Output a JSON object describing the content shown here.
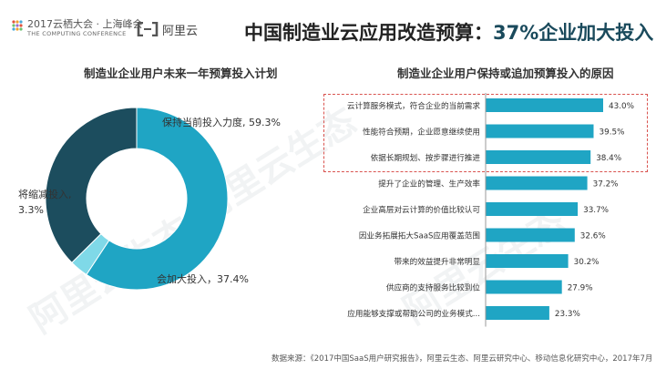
{
  "header": {
    "logo_title": "2017云栖大会 · 上海峰会",
    "logo_subtitle": "THE COMPUTING CONFERENCE",
    "brand": "阿里云",
    "title_prefix": "中国制造业云应用改造预算：",
    "title_highlight": "37%企业加大投入"
  },
  "watermark": "阿里云生态",
  "colors": {
    "pie_keep": "#1fa5c4",
    "pie_reduce": "#7fd9e8",
    "pie_increase": "#1c4d5e",
    "bar": "#1fa5c4",
    "highlight_border": "#d9534f"
  },
  "chart_data": [
    {
      "type": "pie",
      "style": "donut",
      "title": "制造业企业用户未来一年预算投入计划",
      "slices": [
        {
          "label": "保持当前投入力度",
          "value": 59.3,
          "display": "保持当前投入力度, 59.3%"
        },
        {
          "label": "将缩减投入",
          "value": 3.3,
          "display_line1": "将缩减投入,",
          "display_line2": "3.3%"
        },
        {
          "label": "会加大投入",
          "value": 37.4,
          "display": "会加大投入，37.4%"
        }
      ]
    },
    {
      "type": "bar",
      "orientation": "horizontal",
      "title": "制造业企业用户保持或追加预算投入的原因",
      "categories": [
        "云计算服务模式，符合企业的当前需求",
        "性能符合预期，企业愿意继续使用",
        "依据长期规划、按步骤进行推进",
        "提升了企业的管理、生产效率",
        "企业高层对云计算的价值比较认可",
        "因业务拓展拓大SaaS应用覆盖范围",
        "带来的效益提升非常明显",
        "供应商的支持服务比较到位",
        "应用能够支撑或帮助公司的业务模式..."
      ],
      "values": [
        43.0,
        39.5,
        38.4,
        37.2,
        33.7,
        32.6,
        30.2,
        27.9,
        23.3
      ],
      "value_labels": [
        "43.0%",
        "39.5%",
        "38.4%",
        "37.2%",
        "33.7%",
        "32.6%",
        "30.2%",
        "27.9%",
        "23.3%"
      ],
      "highlighted_count": 3,
      "xlim": [
        0,
        45
      ]
    }
  ],
  "footer": {
    "source": "数据来源：《2017中国SaaS用户研究报告》，阿里云生态、阿里云研究中心、移动信息化研究中心，2017年7月"
  }
}
